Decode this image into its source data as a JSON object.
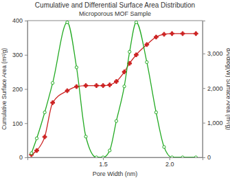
{
  "chart_data": {
    "type": "line",
    "title": "Cumulative and Differential Surface Area Distribution",
    "subtitle": "Microporous MOF Sample",
    "x_label": "Pore Width (nm)",
    "y_label": "Cumulative Surface Area (m²/g)",
    "y2_label": "dA/dlog(W) Surface Area (m²/g)",
    "x": [
      0.96,
      1.0,
      1.06,
      1.12,
      1.23,
      1.3,
      1.37,
      1.45,
      1.5,
      1.55,
      1.6,
      1.66,
      1.7,
      1.75,
      1.83,
      1.9,
      1.96,
      2.02,
      2.1,
      2.2
    ],
    "xlim": [
      0.93,
      2.25
    ],
    "xticks": [
      1.5,
      {
        "value": 2,
        "label": "2.0"
      }
    ],
    "ylim": [
      0,
      400
    ],
    "yticks": [
      0,
      100,
      200,
      300,
      400
    ],
    "y2lim": [
      0,
      3950
    ],
    "y2ticks": [
      0,
      {
        "value": 1000,
        "label": "1,000"
      },
      {
        "value": 2000,
        "label": "2,000"
      },
      {
        "value": 3000,
        "label": "3,000"
      }
    ],
    "grid": false,
    "series": [
      {
        "name": "Cumulative Surface Area",
        "color": "#cc2222",
        "marker": "cross",
        "line_style": "solid",
        "values": [
          8,
          20,
          60,
          160,
          195,
          207,
          210,
          210,
          210,
          212,
          222,
          250,
          275,
          300,
          330,
          352,
          360,
          362,
          362,
          362
        ]
      },
      {
        "name": "dA/dlog(W) Surface Area",
        "color": "#22aa22",
        "marker": "circle",
        "line_style": "solid",
        "axis": "y2",
        "values": [
          120,
          550,
          1300,
          2150,
          3900,
          2600,
          600,
          0,
          0,
          200,
          1050,
          2050,
          3050,
          3900,
          2750,
          1300,
          300,
          0,
          0,
          0
        ]
      }
    ]
  }
}
